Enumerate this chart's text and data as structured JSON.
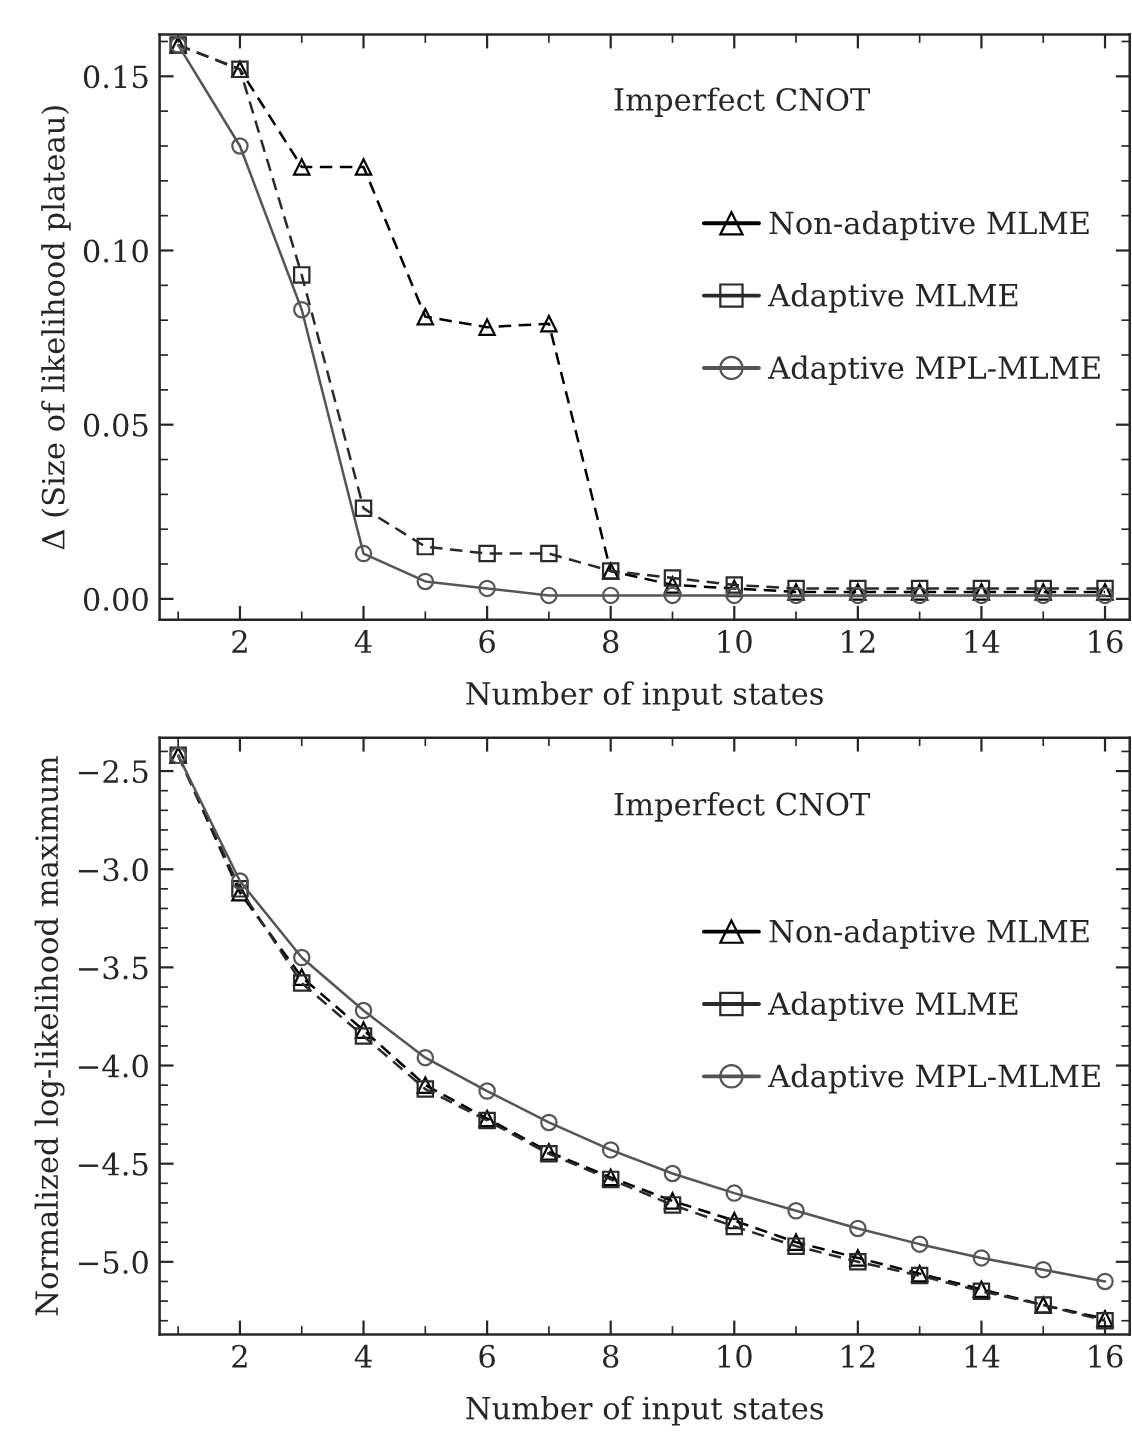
{
  "chart_data": [
    {
      "type": "line",
      "xlabel": "Number of input states",
      "ylabel": "Δ (Size of likelihood plateau)",
      "annotations": [
        "Imperfect CNOT"
      ],
      "x": [
        1,
        2,
        3,
        4,
        5,
        6,
        7,
        8,
        9,
        10,
        11,
        12,
        13,
        14,
        15,
        16
      ],
      "series": [
        {
          "name": "Non-adaptive MLME",
          "color": "#000000",
          "marker": "triangle",
          "line_style": "dashed",
          "values": [
            0.159,
            0.152,
            0.124,
            0.124,
            0.081,
            0.078,
            0.079,
            0.008,
            0.004,
            0.003,
            0.002,
            0.002,
            0.002,
            0.002,
            0.002,
            0.002
          ]
        },
        {
          "name": "Adaptive MLME",
          "color": "#2a2a2a",
          "marker": "square",
          "line_style": "dashed",
          "values": [
            0.159,
            0.152,
            0.093,
            0.026,
            0.015,
            0.013,
            0.013,
            0.008,
            0.006,
            0.004,
            0.003,
            0.003,
            0.003,
            0.003,
            0.003,
            0.003
          ]
        },
        {
          "name": "Adaptive MPL-MLME",
          "color": "#555555",
          "marker": "circle",
          "line_style": "solid",
          "values": [
            0.159,
            0.13,
            0.083,
            0.013,
            0.005,
            0.003,
            0.001,
            0.001,
            0.001,
            0.001,
            0.001,
            0.001,
            0.001,
            0.001,
            0.001,
            0.001
          ]
        }
      ],
      "xlim": [
        0.7,
        16.4
      ],
      "xticks": [
        2,
        4,
        6,
        8,
        10,
        12,
        14,
        16
      ],
      "ylim": [
        -0.006,
        0.162
      ],
      "yticks": [
        {
          "value": 0,
          "label": "0.00"
        },
        {
          "value": 0.05,
          "label": "0.05"
        },
        {
          "value": 0.1,
          "label": "0.10"
        },
        {
          "value": 0.15,
          "label": "0.15"
        }
      ],
      "legend": "right",
      "grid": false
    },
    {
      "type": "line",
      "xlabel": "Number of input states",
      "ylabel": "Normalized log-likelihood maximum",
      "annotations": [
        "Imperfect CNOT"
      ],
      "x": [
        1,
        2,
        3,
        4,
        5,
        6,
        7,
        8,
        9,
        10,
        11,
        12,
        13,
        14,
        15,
        16
      ],
      "series": [
        {
          "name": "Non-adaptive MLME",
          "color": "#000000",
          "marker": "triangle",
          "line_style": "dashed",
          "values": [
            -2.42,
            -3.12,
            -3.55,
            -3.82,
            -4.1,
            -4.27,
            -4.44,
            -4.57,
            -4.69,
            -4.79,
            -4.9,
            -4.98,
            -5.06,
            -5.14,
            -5.22,
            -5.29
          ]
        },
        {
          "name": "Adaptive MLME",
          "color": "#2a2a2a",
          "marker": "square",
          "line_style": "dashed",
          "values": [
            -2.42,
            -3.1,
            -3.58,
            -3.85,
            -4.12,
            -4.28,
            -4.45,
            -4.58,
            -4.71,
            -4.82,
            -4.92,
            -5.0,
            -5.07,
            -5.15,
            -5.22,
            -5.3
          ]
        },
        {
          "name": "Adaptive MPL-MLME",
          "color": "#555555",
          "marker": "circle",
          "line_style": "solid",
          "values": [
            -2.42,
            -3.06,
            -3.45,
            -3.72,
            -3.96,
            -4.13,
            -4.29,
            -4.43,
            -4.55,
            -4.65,
            -4.74,
            -4.83,
            -4.91,
            -4.98,
            -5.04,
            -5.1
          ]
        }
      ],
      "xlim": [
        0.7,
        16.4
      ],
      "xticks": [
        2,
        4,
        6,
        8,
        10,
        12,
        14,
        16
      ],
      "ylim": [
        -5.37,
        -2.33
      ],
      "yticks": [
        {
          "value": -5.0,
          "label": "−5.0"
        },
        {
          "value": -4.5,
          "label": "−4.5"
        },
        {
          "value": -4.0,
          "label": "−4.0"
        },
        {
          "value": -3.5,
          "label": "−3.5"
        },
        {
          "value": -3.0,
          "label": "−3.0"
        },
        {
          "value": -2.5,
          "label": "−2.5"
        }
      ],
      "legend": "right",
      "grid": false
    }
  ]
}
